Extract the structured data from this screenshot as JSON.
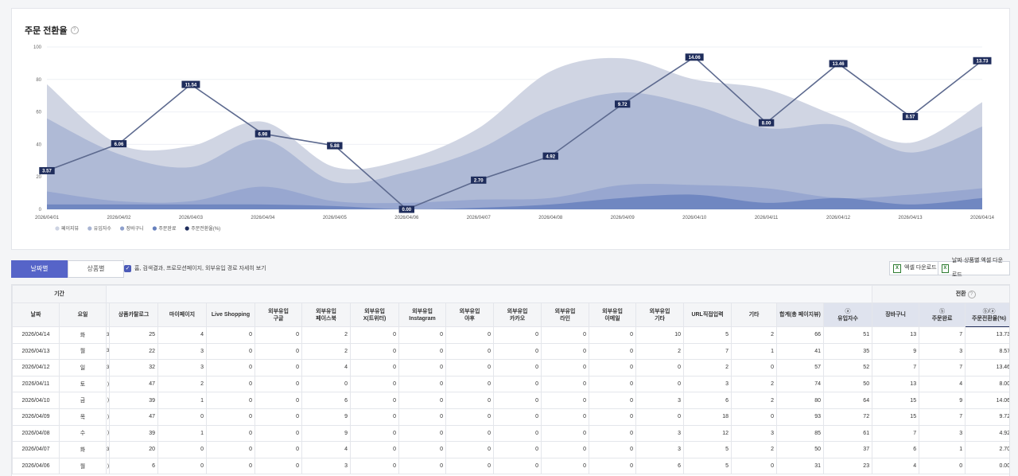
{
  "chart": {
    "title": "주문 전환율",
    "help_glyph": "?",
    "legend": [
      "페이지뷰",
      "유입자수",
      "장바구니",
      "주문완료",
      "주문전환율(%)"
    ],
    "colors": {
      "pageview": "#cdd3e2",
      "inflow": "#a9b5d3",
      "cart": "#8ea0cd",
      "order": "#6680bd",
      "rate_line": "#5d6a8f",
      "rate_label_bg": "#1f2d5c"
    }
  },
  "chart_data": {
    "type": "area",
    "x": [
      "2026/04/01",
      "2026/04/02",
      "2026/04/03",
      "2026/04/04",
      "2026/04/05",
      "2026/04/06",
      "2026/04/07",
      "2026/04/08",
      "2026/04/09",
      "2026/04/10",
      "2026/04/11",
      "2026/04/12",
      "2026/04/13",
      "2026/04/14"
    ],
    "ylim": [
      0,
      100
    ],
    "yticks": [
      "0",
      "20",
      "40",
      "60",
      "80",
      "100"
    ],
    "series": [
      {
        "name": "페이지뷰",
        "values": [
          77,
          40,
          39,
          54,
          26,
          31,
          50,
          85,
          93,
          80,
          74,
          57,
          41,
          66
        ]
      },
      {
        "name": "유입자수",
        "values": [
          56,
          34,
          26,
          43,
          17,
          23,
          37,
          61,
          72,
          64,
          50,
          52,
          35,
          51
        ]
      },
      {
        "name": "장바구니",
        "values": [
          11,
          5,
          5,
          14,
          5,
          4,
          6,
          7,
          15,
          15,
          13,
          7,
          9,
          13
        ]
      },
      {
        "name": "주문완료",
        "values": [
          3,
          3,
          3,
          3,
          2,
          0,
          1,
          3,
          7,
          9,
          4,
          7,
          3,
          7
        ]
      }
    ],
    "line": {
      "name": "주문전환율(%)",
      "ylim": [
        0,
        15
      ],
      "values": [
        3.57,
        6.06,
        11.54,
        6.98,
        5.88,
        0.0,
        2.7,
        4.92,
        9.72,
        14.06,
        8.0,
        13.46,
        8.57,
        13.73
      ],
      "labels": [
        "3.57",
        "6.06",
        "11.54",
        "6.98",
        "5.88",
        "0.00",
        "2.70",
        "4.92",
        "9.72",
        "14.06",
        "8.00",
        "13.46",
        "8.57",
        "13.73"
      ]
    }
  },
  "controls": {
    "tab_date": "날짜별",
    "tab_product": "상품별",
    "checkbox_label": "홈, 검색결과, 프로모션페이지, 외부유입 경로 자세히 보기",
    "check_glyph": "✓",
    "excel_icon": "X",
    "excel_download": "엑셀 다운로드",
    "excel_download_by_product": "날짜·상품별 엑셀 다운로드"
  },
  "table": {
    "group_period": "기간",
    "group_conversion": "전환",
    "headers": {
      "date": "날짜",
      "day": "요일",
      "catalog": "상품카탈로그",
      "mypage": "마이페이지",
      "live": "Live Shopping",
      "ext_google_1": "외부유입",
      "ext_google_2": "구글",
      "ext_fb_1": "외부유입",
      "ext_fb_2": "페이스북",
      "ext_x_1": "외부유입",
      "ext_x_2": "X(트위터)",
      "ext_ig_1": "외부유입",
      "ext_ig_2": "Instagram",
      "ext_yahoo_1": "외부유입",
      "ext_yahoo_2": "야후",
      "ext_kakao_1": "외부유입",
      "ext_kakao_2": "카카오",
      "ext_line_1": "외부유입",
      "ext_line_2": "라인",
      "ext_email_1": "외부유입",
      "ext_email_2": "이메일",
      "ext_etc_1": "외부유입",
      "ext_etc_2": "기타",
      "url": "URL직접입력",
      "etc": "기타",
      "total": "합계(총 페이지뷰)",
      "inflow_icon": "ⓐ",
      "inflow": "유입자수",
      "cart": "장바구니",
      "order_icon": "ⓑ",
      "order": "주문완료",
      "rate_icon": "ⓑ/ⓐ",
      "rate": "주문전환율(%)"
    },
    "rows": [
      {
        "date": "2026/04/14",
        "day": "화",
        "cut": "3",
        "catalog": "25",
        "mypage": "4",
        "live": "0",
        "g": "0",
        "fb": "2",
        "x": "0",
        "ig": "0",
        "yh": "0",
        "kk": "0",
        "ln": "0",
        "em": "0",
        "ext": "10",
        "url": "5",
        "etc": "2",
        "total": "66",
        "inflow": "51",
        "cart": "13",
        "order": "7",
        "rate": "13.73"
      },
      {
        "date": "2026/04/13",
        "day": "월",
        "cut": "3",
        "catalog": "22",
        "mypage": "3",
        "live": "0",
        "g": "0",
        "fb": "2",
        "x": "0",
        "ig": "0",
        "yh": "0",
        "kk": "0",
        "ln": "0",
        "em": "0",
        "ext": "2",
        "url": "7",
        "etc": "1",
        "total": "41",
        "inflow": "35",
        "cart": "9",
        "order": "3",
        "rate": "8.57"
      },
      {
        "date": "2026/04/12",
        "day": "일",
        "cut": "3",
        "catalog": "32",
        "mypage": "3",
        "live": "0",
        "g": "0",
        "fb": "4",
        "x": "0",
        "ig": "0",
        "yh": "0",
        "kk": "0",
        "ln": "0",
        "em": "0",
        "ext": "0",
        "url": "2",
        "etc": "0",
        "total": "57",
        "inflow": "52",
        "cart": "7",
        "order": "7",
        "rate": "13.46"
      },
      {
        "date": "2026/04/11",
        "day": "토",
        "cut": ")",
        "catalog": "47",
        "mypage": "2",
        "live": "0",
        "g": "0",
        "fb": "0",
        "x": "0",
        "ig": "0",
        "yh": "0",
        "kk": "0",
        "ln": "0",
        "em": "0",
        "ext": "0",
        "url": "3",
        "etc": "2",
        "total": "74",
        "inflow": "50",
        "cart": "13",
        "order": "4",
        "rate": "8.00"
      },
      {
        "date": "2026/04/10",
        "day": "금",
        "cut": ")",
        "catalog": "39",
        "mypage": "1",
        "live": "0",
        "g": "0",
        "fb": "6",
        "x": "0",
        "ig": "0",
        "yh": "0",
        "kk": "0",
        "ln": "0",
        "em": "0",
        "ext": "3",
        "url": "6",
        "etc": "2",
        "total": "80",
        "inflow": "64",
        "cart": "15",
        "order": "9",
        "rate": "14.06"
      },
      {
        "date": "2026/04/09",
        "day": "목",
        "cut": ")",
        "catalog": "47",
        "mypage": "0",
        "live": "0",
        "g": "0",
        "fb": "9",
        "x": "0",
        "ig": "0",
        "yh": "0",
        "kk": "0",
        "ln": "0",
        "em": "0",
        "ext": "0",
        "url": "18",
        "etc": "0",
        "total": "93",
        "inflow": "72",
        "cart": "15",
        "order": "7",
        "rate": "9.72"
      },
      {
        "date": "2026/04/08",
        "day": "수",
        "cut": ")",
        "catalog": "39",
        "mypage": "1",
        "live": "0",
        "g": "0",
        "fb": "9",
        "x": "0",
        "ig": "0",
        "yh": "0",
        "kk": "0",
        "ln": "0",
        "em": "0",
        "ext": "3",
        "url": "12",
        "etc": "3",
        "total": "85",
        "inflow": "61",
        "cart": "7",
        "order": "3",
        "rate": "4.92"
      },
      {
        "date": "2026/04/07",
        "day": "화",
        "cut": "3",
        "catalog": "20",
        "mypage": "0",
        "live": "0",
        "g": "0",
        "fb": "4",
        "x": "0",
        "ig": "0",
        "yh": "0",
        "kk": "0",
        "ln": "0",
        "em": "0",
        "ext": "3",
        "url": "5",
        "etc": "2",
        "total": "50",
        "inflow": "37",
        "cart": "6",
        "order": "1",
        "rate": "2.70"
      },
      {
        "date": "2026/04/06",
        "day": "월",
        "cut": ")",
        "catalog": "6",
        "mypage": "0",
        "live": "0",
        "g": "0",
        "fb": "3",
        "x": "0",
        "ig": "0",
        "yh": "0",
        "kk": "0",
        "ln": "0",
        "em": "0",
        "ext": "6",
        "url": "5",
        "etc": "0",
        "total": "31",
        "inflow": "23",
        "cart": "4",
        "order": "0",
        "rate": "0.00"
      }
    ]
  }
}
